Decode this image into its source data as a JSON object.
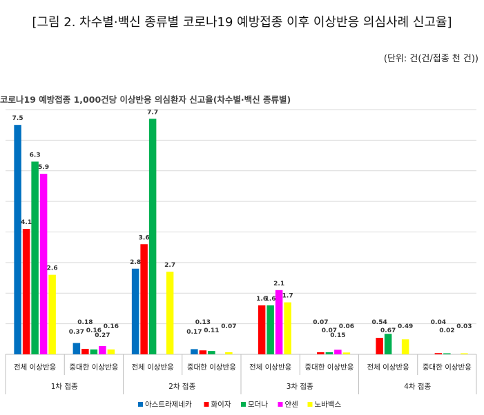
{
  "header": {
    "title": "[그림 2. 차수별·백신 종류별 코로나19 예방접종 이후   이상반응 의심사례 신고율]",
    "unit": "(단위: 건(건/접종 천 건))"
  },
  "chart_data": {
    "type": "bar",
    "title": "코로나19 예방접종 1,000건당 이상반응 의심환자 신고율(차수별·백신 종류별)",
    "ylim": [
      0,
      8
    ],
    "grid": true,
    "legend_position": "bottom",
    "groups": [
      {
        "label": "1차 접종",
        "categories": [
          "전체 이상반응",
          "중대한 이상반응"
        ]
      },
      {
        "label": "2차 접종",
        "categories": [
          "전체 이상반응",
          "중대한 이상반응"
        ]
      },
      {
        "label": "3차 접종",
        "categories": [
          "전체 이상반응",
          "중대한 이상반응"
        ]
      },
      {
        "label": "4차 접종",
        "categories": [
          "전체 이상반응",
          "중대한 이상반응"
        ]
      }
    ],
    "series": [
      {
        "name": "아스트라제네카",
        "color": "#0070c0",
        "values": [
          7.5,
          0.37,
          2.8,
          0.17,
          null,
          null,
          null,
          null
        ],
        "labels": [
          "7.5",
          "0.37",
          "2.8",
          "0.17",
          null,
          null,
          null,
          null
        ]
      },
      {
        "name": "화이자",
        "color": "#ff0000",
        "values": [
          4.1,
          0.18,
          3.6,
          0.13,
          1.6,
          0.07,
          0.54,
          0.04
        ],
        "labels": [
          "4.1",
          "0.18",
          "3.6",
          "0.13",
          "1.6",
          "0.07",
          "0.54",
          "0.04"
        ]
      },
      {
        "name": "모더나",
        "color": "#00b050",
        "values": [
          6.3,
          0.16,
          7.7,
          0.11,
          1.6,
          0.07,
          0.67,
          0.02
        ],
        "labels": [
          "6.3",
          "0.16",
          "7.7",
          "0.11",
          "1.6",
          "0.07",
          "0.67",
          "0.02"
        ]
      },
      {
        "name": "얀센",
        "color": "#ff00ff",
        "values": [
          5.9,
          0.27,
          null,
          null,
          2.1,
          0.15,
          null,
          null
        ],
        "labels": [
          "5.9",
          "0.27",
          null,
          null,
          "2.1",
          "0.15",
          null,
          null
        ]
      },
      {
        "name": "노바백스",
        "color": "#ffff00",
        "values": [
          2.6,
          0.16,
          2.7,
          0.07,
          1.7,
          0.06,
          0.49,
          0.03
        ],
        "labels": [
          "2.6",
          "0.16",
          "2.7",
          "0.07",
          "1.7",
          "0.06",
          "0.49",
          "0.03"
        ]
      }
    ]
  }
}
